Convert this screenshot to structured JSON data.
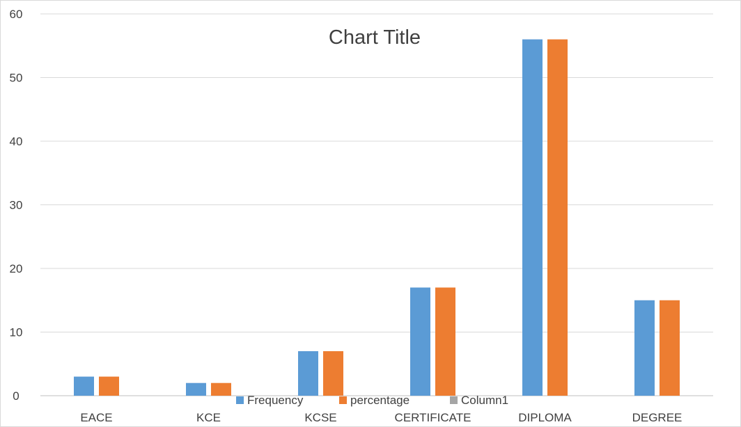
{
  "chart_data": {
    "type": "bar",
    "title": "Chart Title",
    "xlabel": "",
    "ylabel": "",
    "categories": [
      "EACE",
      "KCE",
      "KCSE",
      "CERTIFICATE",
      "DIPLOMA",
      "DEGREE"
    ],
    "series": [
      {
        "name": "Frequency",
        "values": [
          3,
          2,
          7,
          17,
          56,
          15
        ],
        "color": "#5b9bd5"
      },
      {
        "name": "percentage",
        "values": [
          3,
          2,
          7,
          17,
          56,
          15
        ],
        "color": "#ed7d31"
      },
      {
        "name": "Column1",
        "values": [
          null,
          null,
          null,
          null,
          null,
          null
        ],
        "color": "#a5a5a5"
      }
    ],
    "ylim": [
      0,
      60
    ],
    "yticks": [
      0,
      10,
      20,
      30,
      40,
      50,
      60
    ],
    "grid": true,
    "legend_position": "bottom"
  }
}
